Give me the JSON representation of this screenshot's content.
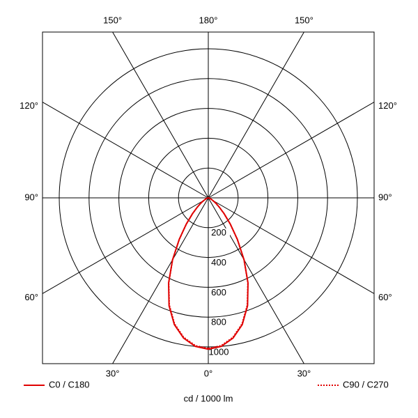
{
  "chart_data": {
    "type": "polar",
    "x_label": "cd / 1000 lm",
    "rlim": [
      0,
      1000
    ],
    "rticks": [
      200,
      400,
      600,
      800,
      1000
    ],
    "angle_ticks": [
      {
        "value": 0,
        "label": "0°"
      },
      {
        "value": 30,
        "label": "30°"
      },
      {
        "value": 60,
        "label": "60°"
      },
      {
        "value": 90,
        "label": "90°"
      },
      {
        "value": 120,
        "label": "120°"
      },
      {
        "value": 150,
        "label": "150°"
      },
      {
        "value": 180,
        "label": "180°"
      }
    ],
    "angles": [
      0,
      5,
      10,
      15,
      20,
      25,
      30,
      35,
      40,
      45,
      50,
      55,
      60,
      65,
      70,
      75,
      80,
      85,
      90
    ],
    "series": [
      {
        "name": "C0 / C180",
        "color": "#e00000",
        "style": "solid",
        "values": [
          1015,
          1000,
          955,
          880,
          770,
          630,
          480,
          340,
          230,
          150,
          95,
          60,
          35,
          20,
          10,
          5,
          2,
          1,
          0
        ]
      },
      {
        "name": "C90 / C270",
        "color": "#e00000",
        "style": "dotted",
        "values": [
          1010,
          995,
          950,
          875,
          765,
          628,
          478,
          338,
          228,
          148,
          94,
          59,
          34,
          19,
          9,
          4,
          2,
          1,
          0
        ]
      }
    ]
  }
}
